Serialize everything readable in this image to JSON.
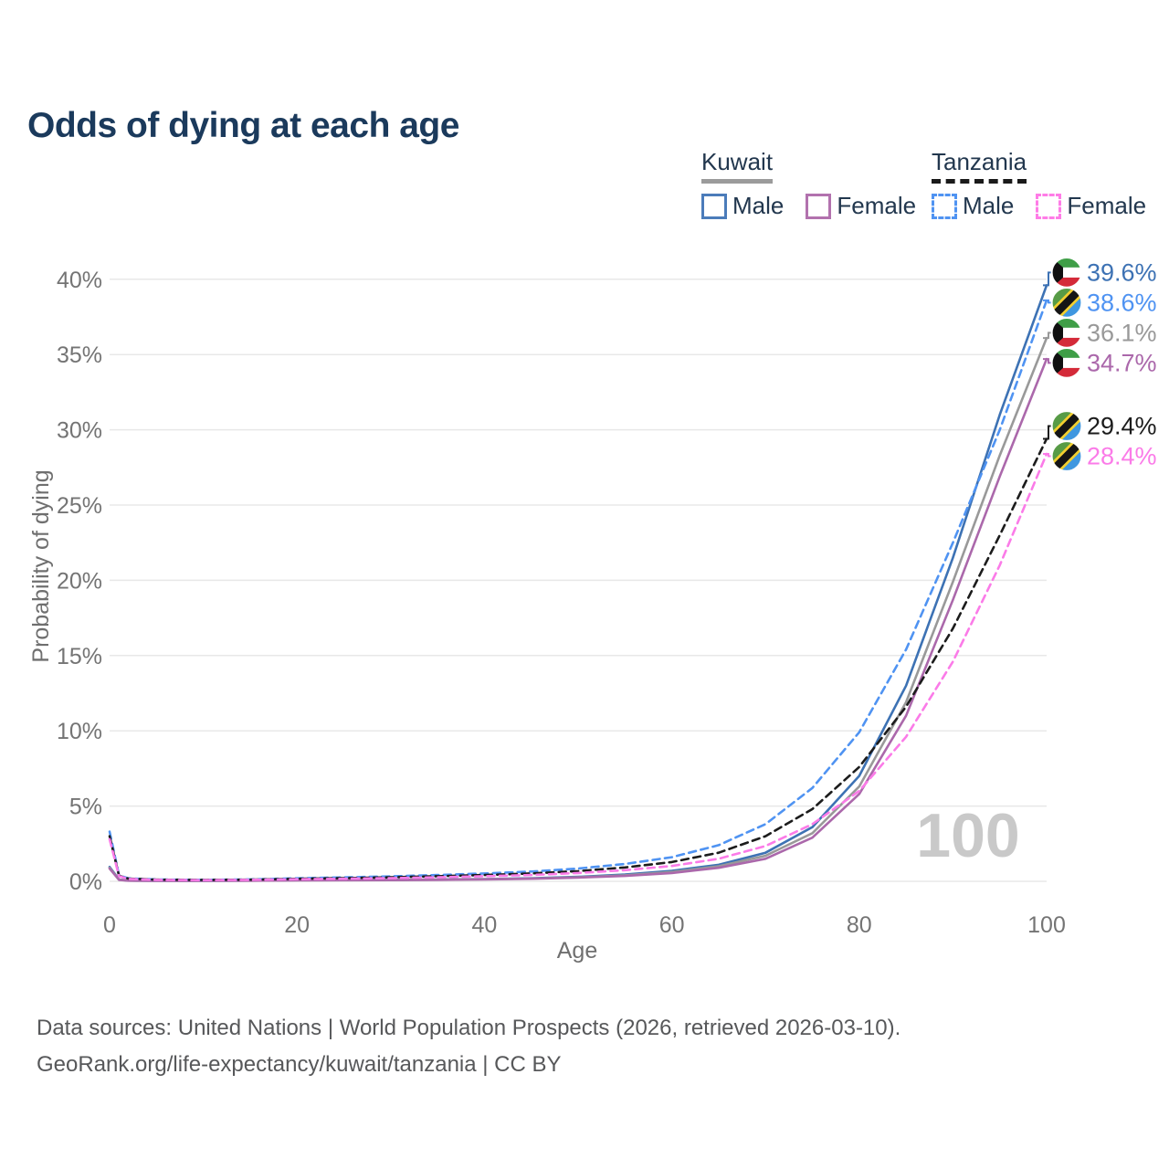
{
  "title": "Odds of dying at each age",
  "legend": {
    "groups": [
      {
        "country": "Kuwait",
        "line_style": "solid",
        "underline_color": "#9b9b9b",
        "items": [
          {
            "label": "Male",
            "color": "#4b7cba",
            "dashed": false
          },
          {
            "label": "Female",
            "color": "#b272ae",
            "dashed": false
          }
        ]
      },
      {
        "country": "Tanzania",
        "line_style": "dashed",
        "underline_color": "#1a1a1a",
        "items": [
          {
            "label": "Male",
            "color": "#4f93f2",
            "dashed": true
          },
          {
            "label": "Female",
            "color": "#ff7ce7",
            "dashed": true
          }
        ]
      }
    ]
  },
  "watermark": "100",
  "caption": {
    "line1": "Data sources: United Nations | World Population Prospects (2026, retrieved 2026-03-10).",
    "line2": "GeoRank.org/life-expectancy/kuwait/tanzania | CC BY"
  },
  "chart_data": {
    "type": "line",
    "title": "Odds of dying at each age",
    "xlabel": "Age",
    "ylabel": "Probability of dying",
    "xlim": [
      0,
      100
    ],
    "ylim_percent": [
      0,
      40
    ],
    "x_ticks": [
      0,
      20,
      40,
      60,
      80,
      100
    ],
    "y_ticks_percent": [
      0,
      5,
      10,
      15,
      20,
      25,
      30,
      35,
      40
    ],
    "grid": "horizontal",
    "legend_position": "top-right",
    "series": [
      {
        "name": "Kuwait — Male",
        "country": "Kuwait",
        "sex": "Male",
        "color": "#3d72b4",
        "dashed": false,
        "flag": "kw",
        "end_label": "39.6%",
        "points": [
          [
            0,
            0.95
          ],
          [
            1,
            0.12
          ],
          [
            2,
            0.05
          ],
          [
            5,
            0.03
          ],
          [
            10,
            0.03
          ],
          [
            15,
            0.05
          ],
          [
            20,
            0.08
          ],
          [
            25,
            0.09
          ],
          [
            30,
            0.1
          ],
          [
            35,
            0.12
          ],
          [
            40,
            0.15
          ],
          [
            45,
            0.2
          ],
          [
            50,
            0.3
          ],
          [
            55,
            0.45
          ],
          [
            60,
            0.7
          ],
          [
            65,
            1.1
          ],
          [
            70,
            1.9
          ],
          [
            75,
            3.6
          ],
          [
            80,
            7.0
          ],
          [
            85,
            13.0
          ],
          [
            90,
            21.5
          ],
          [
            95,
            31.0
          ],
          [
            100,
            39.6
          ]
        ]
      },
      {
        "name": "Tanzania — Male",
        "country": "Tanzania",
        "sex": "Male",
        "color": "#4f93f2",
        "dashed": true,
        "flag": "tz",
        "end_label": "38.6%",
        "points": [
          [
            0,
            3.3
          ],
          [
            1,
            0.4
          ],
          [
            2,
            0.2
          ],
          [
            5,
            0.12
          ],
          [
            10,
            0.1
          ],
          [
            15,
            0.13
          ],
          [
            20,
            0.2
          ],
          [
            25,
            0.26
          ],
          [
            30,
            0.33
          ],
          [
            35,
            0.42
          ],
          [
            40,
            0.52
          ],
          [
            45,
            0.65
          ],
          [
            50,
            0.85
          ],
          [
            55,
            1.15
          ],
          [
            60,
            1.6
          ],
          [
            65,
            2.4
          ],
          [
            70,
            3.8
          ],
          [
            75,
            6.2
          ],
          [
            80,
            9.9
          ],
          [
            85,
            15.4
          ],
          [
            90,
            22.5
          ],
          [
            95,
            30.0
          ],
          [
            100,
            38.6
          ]
        ]
      },
      {
        "name": "Kuwait — Both sexes",
        "country": "Kuwait",
        "sex": "Both",
        "color": "#999999",
        "dashed": false,
        "flag": "kw",
        "end_label": "36.1%",
        "points": [
          [
            0,
            0.9
          ],
          [
            1,
            0.11
          ],
          [
            2,
            0.05
          ],
          [
            5,
            0.03
          ],
          [
            10,
            0.03
          ],
          [
            15,
            0.04
          ],
          [
            20,
            0.07
          ],
          [
            25,
            0.08
          ],
          [
            30,
            0.09
          ],
          [
            35,
            0.11
          ],
          [
            40,
            0.14
          ],
          [
            45,
            0.18
          ],
          [
            50,
            0.27
          ],
          [
            55,
            0.4
          ],
          [
            60,
            0.62
          ],
          [
            65,
            1.0
          ],
          [
            70,
            1.7
          ],
          [
            75,
            3.2
          ],
          [
            80,
            6.3
          ],
          [
            85,
            11.9
          ],
          [
            90,
            19.9
          ],
          [
            95,
            28.3
          ],
          [
            100,
            36.1
          ]
        ]
      },
      {
        "name": "Kuwait — Female",
        "country": "Kuwait",
        "sex": "Female",
        "color": "#ab68ab",
        "dashed": false,
        "flag": "kw",
        "end_label": "34.7%",
        "points": [
          [
            0,
            0.85
          ],
          [
            1,
            0.1
          ],
          [
            2,
            0.04
          ],
          [
            5,
            0.03
          ],
          [
            10,
            0.03
          ],
          [
            15,
            0.04
          ],
          [
            20,
            0.06
          ],
          [
            25,
            0.07
          ],
          [
            30,
            0.08
          ],
          [
            35,
            0.1
          ],
          [
            40,
            0.13
          ],
          [
            45,
            0.17
          ],
          [
            50,
            0.25
          ],
          [
            55,
            0.36
          ],
          [
            60,
            0.55
          ],
          [
            65,
            0.9
          ],
          [
            70,
            1.5
          ],
          [
            75,
            2.9
          ],
          [
            80,
            5.8
          ],
          [
            85,
            11.0
          ],
          [
            90,
            18.7
          ],
          [
            95,
            26.9
          ],
          [
            100,
            34.7
          ]
        ]
      },
      {
        "name": "Tanzania — Both sexes",
        "country": "Tanzania",
        "sex": "Both",
        "color": "#1c1c1c",
        "dashed": true,
        "flag": "tz",
        "end_label": "29.4%",
        "points": [
          [
            0,
            3.0
          ],
          [
            1,
            0.37
          ],
          [
            2,
            0.18
          ],
          [
            5,
            0.11
          ],
          [
            10,
            0.09
          ],
          [
            15,
            0.11
          ],
          [
            20,
            0.17
          ],
          [
            25,
            0.21
          ],
          [
            30,
            0.27
          ],
          [
            35,
            0.34
          ],
          [
            40,
            0.42
          ],
          [
            45,
            0.52
          ],
          [
            50,
            0.68
          ],
          [
            55,
            0.92
          ],
          [
            60,
            1.28
          ],
          [
            65,
            1.9
          ],
          [
            70,
            3.0
          ],
          [
            75,
            4.8
          ],
          [
            80,
            7.6
          ],
          [
            85,
            11.6
          ],
          [
            90,
            16.8
          ],
          [
            95,
            23.0
          ],
          [
            100,
            29.4
          ]
        ]
      },
      {
        "name": "Tanzania — Female",
        "country": "Tanzania",
        "sex": "Female",
        "color": "#fb7be8",
        "dashed": true,
        "flag": "tz",
        "end_label": "28.4%",
        "points": [
          [
            0,
            2.8
          ],
          [
            1,
            0.34
          ],
          [
            2,
            0.16
          ],
          [
            5,
            0.1
          ],
          [
            10,
            0.08
          ],
          [
            15,
            0.1
          ],
          [
            20,
            0.14
          ],
          [
            25,
            0.17
          ],
          [
            30,
            0.21
          ],
          [
            35,
            0.27
          ],
          [
            40,
            0.34
          ],
          [
            45,
            0.42
          ],
          [
            50,
            0.55
          ],
          [
            55,
            0.74
          ],
          [
            60,
            1.02
          ],
          [
            65,
            1.5
          ],
          [
            70,
            2.35
          ],
          [
            75,
            3.8
          ],
          [
            80,
            6.0
          ],
          [
            85,
            9.6
          ],
          [
            90,
            14.6
          ],
          [
            95,
            21.0
          ],
          [
            100,
            28.4
          ]
        ]
      }
    ]
  }
}
